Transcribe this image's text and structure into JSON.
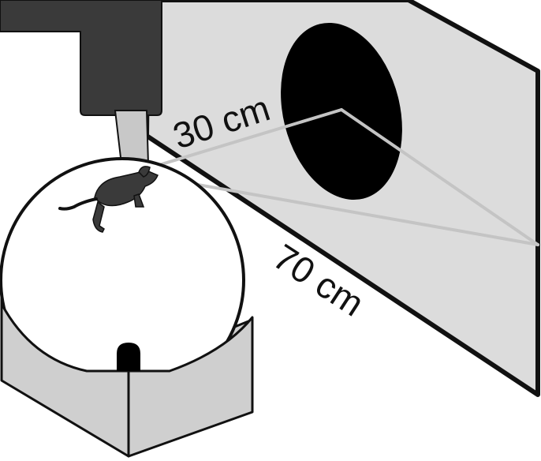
{
  "labels": {
    "distance_near": "30 cm",
    "distance_far": "70 cm"
  },
  "colors": {
    "screen_fill": "#dcdcdc",
    "stimulus": "#000000",
    "holder": "#3a3a3a",
    "headpost": "#c8c8c8",
    "sightline": "#c4c4c4",
    "base_fill": "#cfcfcf",
    "mouse": "#3a3a3a",
    "outline": "#111111"
  }
}
